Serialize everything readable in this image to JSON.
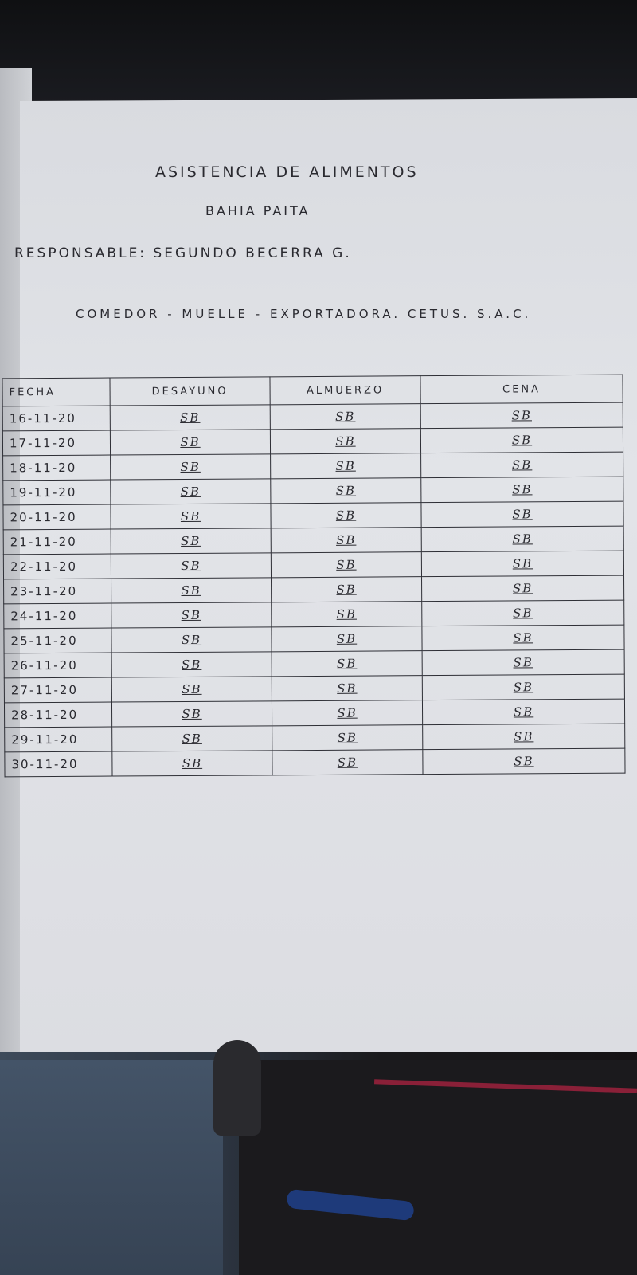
{
  "document": {
    "title": "ASISTENCIA DE ALIMENTOS",
    "subtitle": "BAHIA PAITA",
    "responsible": "RESPONSABLE: SEGUNDO BECERRA G.",
    "location": "COMEDOR - MUELLE - EXPORTADORA. CETUS. S.A.C."
  },
  "table": {
    "headers": [
      "FECHA",
      "DESAYUNO",
      "ALMUERZO",
      "CENA"
    ],
    "rows": [
      [
        "16-11-20",
        "SB",
        "SB",
        "SB"
      ],
      [
        "17-11-20",
        "SB",
        "SB",
        "SB"
      ],
      [
        "18-11-20",
        "SB",
        "SB",
        "SB"
      ],
      [
        "19-11-20",
        "SB",
        "SB",
        "SB"
      ],
      [
        "20-11-20",
        "SB",
        "SB",
        "SB"
      ],
      [
        "21-11-20",
        "SB",
        "SB",
        "SB"
      ],
      [
        "22-11-20",
        "SB",
        "SB",
        "SB"
      ],
      [
        "23-11-20",
        "SB",
        "SB",
        "SB"
      ],
      [
        "24-11-20",
        "SB",
        "SB",
        "SB"
      ],
      [
        "25-11-20",
        "SB",
        "SB",
        "SB"
      ],
      [
        "26-11-20",
        "SB",
        "SB",
        "SB"
      ],
      [
        "27-11-20",
        "SB",
        "SB",
        "SB"
      ],
      [
        "28-11-20",
        "SB",
        "SB",
        "SB"
      ],
      [
        "29-11-20",
        "SB",
        "SB",
        "SB"
      ],
      [
        "30-11-20",
        "SB",
        "SB",
        "SB"
      ]
    ]
  }
}
